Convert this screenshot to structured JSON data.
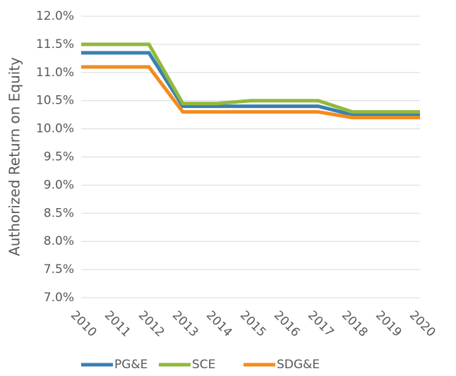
{
  "chart_data": {
    "type": "line",
    "y_label": "Authorized Return on Equity",
    "categories": [
      "2010",
      "2011",
      "2012",
      "2013",
      "2014",
      "2015",
      "2016",
      "2017",
      "2018",
      "2019",
      "2020"
    ],
    "series": [
      {
        "name": "PG&E",
        "color": "#3a7fb4",
        "values": [
          11.35,
          11.35,
          11.35,
          10.4,
          10.4,
          10.4,
          10.4,
          10.4,
          10.25,
          10.25,
          10.25
        ]
      },
      {
        "name": "SCE",
        "color": "#92b93c",
        "values": [
          11.5,
          11.5,
          11.5,
          10.45,
          10.45,
          10.5,
          10.5,
          10.5,
          10.3,
          10.3,
          10.3
        ]
      },
      {
        "name": "SDG&E",
        "color": "#f28c1e",
        "values": [
          11.1,
          11.1,
          11.1,
          10.3,
          10.3,
          10.3,
          10.3,
          10.3,
          10.2,
          10.2,
          10.2
        ]
      }
    ],
    "ylim": [
      7,
      12
    ],
    "yticks": [
      {
        "value": 7,
        "label": "7.0%"
      },
      {
        "value": 7.5,
        "label": "7.5%"
      },
      {
        "value": 8,
        "label": "8.0%"
      },
      {
        "value": 8.5,
        "label": "8.5%"
      },
      {
        "value": 9,
        "label": "9.0%"
      },
      {
        "value": 9.5,
        "label": "9.5%"
      },
      {
        "value": 10,
        "label": "10.0%"
      },
      {
        "value": 10.5,
        "label": "10.5%"
      },
      {
        "value": 11,
        "label": "11.0%"
      },
      {
        "value": 11.5,
        "label": "11.5%"
      },
      {
        "value": 12,
        "label": "12.0%"
      }
    ],
    "grid": true,
    "legend": "bottom"
  }
}
